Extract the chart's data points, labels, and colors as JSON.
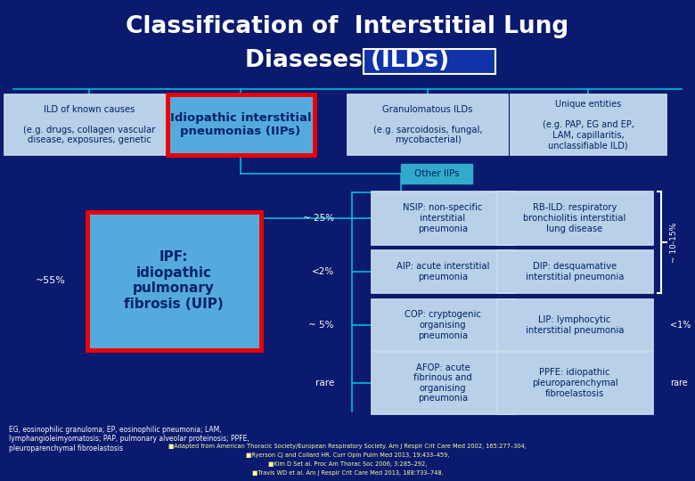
{
  "title_line1": "Classification of  Interstitial Lung",
  "title_line2": "Diaseses (ILDs)",
  "bg_color": "#0A1A6E",
  "title_color": "#FFFFFF",
  "connector_color": "#00BBDD",
  "box_bg_light": "#B8D0E8",
  "box_bg_highlight": "#55AADD",
  "box_border_red": "#EE0000",
  "box_border_white": "#CCDDEE",
  "text_dark": "#002266",
  "text_white": "#FFFFFF",
  "footnote": "EG, eosinophilic granuloma; EP, eosinophilic pneumonia; LAM,\nlymphangioleimyomatosis; PAP, pulmonary alveolar proteinosis; PPFE,\npleuroparenchymal fibroelastosis",
  "refs": [
    "■Adapted from American Thoracic Society/European Respiratory Society. Am J Respir Crit Care Med 2002, 165:277–304,",
    "■Ryerson CJ and Collard HR. Curr Opin Pulm Med 2013, 19:433–459,",
    "■Kim D Set al. Proc Am Thorac Soc 2006, 3:285–292,",
    "■Travis WD et al. Am J Respir Crit Care Med 2013, 188:733–748."
  ]
}
